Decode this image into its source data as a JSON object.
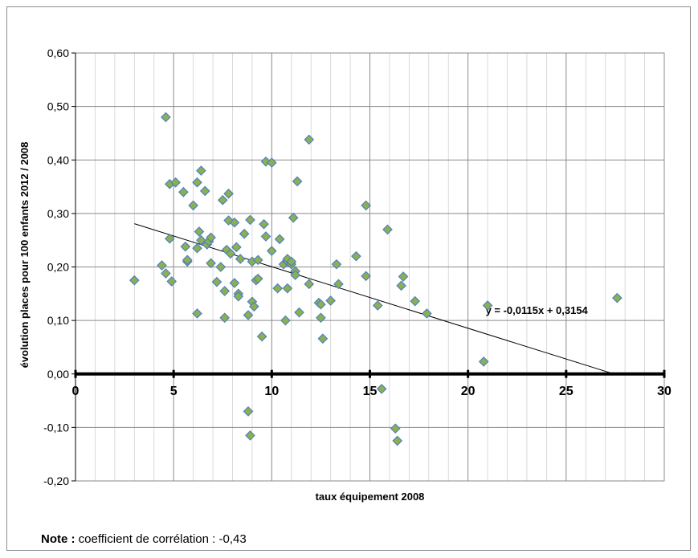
{
  "chart_data": {
    "type": "scatter",
    "title": "",
    "xlabel": "taux équipement 2008",
    "ylabel": "évolution places pour 100 enfants 2012 / 2008",
    "xlim": [
      0,
      30
    ],
    "ylim": [
      -0.2,
      0.6
    ],
    "x_ticks": [
      "0",
      "5",
      "10",
      "15",
      "20",
      "25",
      "30"
    ],
    "y_ticks": [
      "-0,20",
      "-0,10",
      "0,00",
      "0,10",
      "0,20",
      "0,30",
      "0,40",
      "0,50",
      "0,60"
    ],
    "grid": true,
    "marker_color": "#8cb050",
    "marker_edge_color": "#4f81bd",
    "trendline": {
      "slope": -0.0115,
      "intercept": 0.3154,
      "x_start": 3.0,
      "x_end": 27.4,
      "label": "y = -0,0115x + 0,3154"
    },
    "points": [
      [
        3.0,
        0.175
      ],
      [
        4.4,
        0.203
      ],
      [
        4.6,
        0.188
      ],
      [
        4.6,
        0.48
      ],
      [
        4.8,
        0.355
      ],
      [
        4.8,
        0.253
      ],
      [
        4.9,
        0.173
      ],
      [
        5.1,
        0.358
      ],
      [
        5.5,
        0.34
      ],
      [
        5.6,
        0.238
      ],
      [
        5.7,
        0.21
      ],
      [
        5.7,
        0.213
      ],
      [
        6.0,
        0.315
      ],
      [
        6.2,
        0.358
      ],
      [
        6.2,
        0.235
      ],
      [
        6.2,
        0.113
      ],
      [
        6.3,
        0.266
      ],
      [
        6.4,
        0.38
      ],
      [
        6.4,
        0.25
      ],
      [
        6.6,
        0.342
      ],
      [
        6.7,
        0.242
      ],
      [
        6.8,
        0.248
      ],
      [
        6.9,
        0.255
      ],
      [
        6.9,
        0.207
      ],
      [
        7.2,
        0.172
      ],
      [
        7.4,
        0.2
      ],
      [
        7.5,
        0.325
      ],
      [
        7.6,
        0.155
      ],
      [
        7.6,
        0.105
      ],
      [
        7.7,
        0.232
      ],
      [
        7.8,
        0.337
      ],
      [
        7.8,
        0.287
      ],
      [
        7.9,
        0.225
      ],
      [
        8.1,
        0.283
      ],
      [
        8.1,
        0.17
      ],
      [
        8.2,
        0.237
      ],
      [
        8.3,
        0.15
      ],
      [
        8.3,
        0.145
      ],
      [
        8.4,
        0.215
      ],
      [
        8.6,
        0.262
      ],
      [
        8.8,
        0.11
      ],
      [
        8.8,
        -0.07
      ],
      [
        8.9,
        0.288
      ],
      [
        8.9,
        -0.115
      ],
      [
        9.0,
        0.135
      ],
      [
        9.0,
        0.21
      ],
      [
        9.1,
        0.126
      ],
      [
        9.2,
        0.175
      ],
      [
        9.3,
        0.213
      ],
      [
        9.3,
        0.178
      ],
      [
        9.5,
        0.07
      ],
      [
        9.6,
        0.28
      ],
      [
        9.7,
        0.257
      ],
      [
        9.7,
        0.397
      ],
      [
        10.0,
        0.23
      ],
      [
        10.0,
        0.395
      ],
      [
        10.3,
        0.16
      ],
      [
        10.4,
        0.252
      ],
      [
        10.6,
        0.205
      ],
      [
        10.7,
        0.1
      ],
      [
        10.8,
        0.21
      ],
      [
        10.8,
        0.215
      ],
      [
        10.8,
        0.16
      ],
      [
        11.0,
        0.205
      ],
      [
        11.0,
        0.21
      ],
      [
        11.1,
        0.292
      ],
      [
        11.2,
        0.192
      ],
      [
        11.2,
        0.185
      ],
      [
        11.3,
        0.36
      ],
      [
        11.4,
        0.115
      ],
      [
        11.9,
        0.168
      ],
      [
        11.9,
        0.438
      ],
      [
        12.4,
        0.133
      ],
      [
        12.5,
        0.13
      ],
      [
        12.5,
        0.105
      ],
      [
        12.6,
        0.066
      ],
      [
        13.0,
        0.137
      ],
      [
        13.3,
        0.205
      ],
      [
        13.4,
        0.168
      ],
      [
        14.3,
        0.22
      ],
      [
        14.8,
        0.183
      ],
      [
        14.8,
        0.315
      ],
      [
        15.4,
        0.128
      ],
      [
        15.6,
        -0.028
      ],
      [
        15.9,
        0.27
      ],
      [
        16.3,
        -0.102
      ],
      [
        16.4,
        -0.125
      ],
      [
        16.6,
        0.165
      ],
      [
        16.7,
        0.182
      ],
      [
        17.3,
        0.136
      ],
      [
        17.9,
        0.113
      ],
      [
        20.8,
        0.023
      ],
      [
        21.0,
        0.128
      ],
      [
        27.6,
        0.142
      ]
    ]
  },
  "note": {
    "label": "Note :",
    "text": " coefficient de corrélation : -0,43"
  }
}
